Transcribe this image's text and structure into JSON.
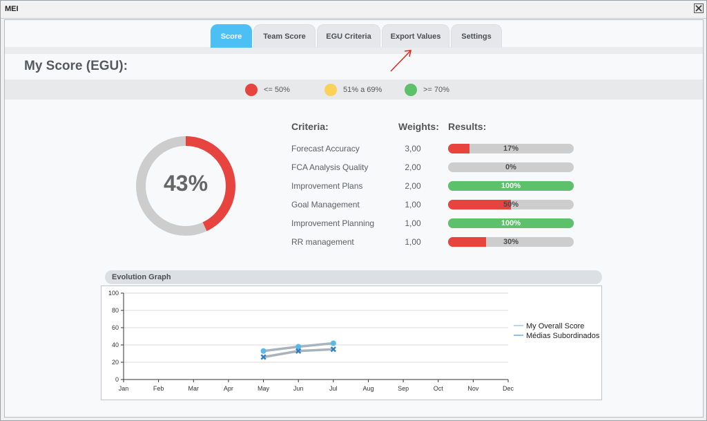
{
  "window": {
    "title": "MEI"
  },
  "tabs": [
    {
      "label": "Score",
      "active": true
    },
    {
      "label": "Team Score",
      "active": false
    },
    {
      "label": "EGU Criteria",
      "active": false
    },
    {
      "label": "Export Values",
      "active": false
    },
    {
      "label": "Settings",
      "active": false
    }
  ],
  "page": {
    "title": "My Score (EGU):"
  },
  "legend": [
    {
      "label": "<= 50%",
      "color": "#e8443f"
    },
    {
      "label": "51% a 69%",
      "color": "#fbd15a"
    },
    {
      "label": ">= 70%",
      "color": "#5cc16a"
    }
  ],
  "overall": {
    "percent_label": "43%",
    "value": 43
  },
  "criteria_table": {
    "headers": {
      "criteria": "Criteria:",
      "weights": "Weights:",
      "results": "Results:"
    },
    "rows": [
      {
        "name": "Forecast Accuracy",
        "weight": "3,00",
        "result": 17,
        "result_label": "17%",
        "color": "#e8443f"
      },
      {
        "name": "FCA Analysis Quality",
        "weight": "2,00",
        "result": 0,
        "result_label": "0%",
        "color": "#e8443f"
      },
      {
        "name": "Improvement Plans",
        "weight": "2,00",
        "result": 100,
        "result_label": "100%",
        "color": "#5cc16a"
      },
      {
        "name": "Goal Management",
        "weight": "1,00",
        "result": 50,
        "result_label": "50%",
        "color": "#e8443f"
      },
      {
        "name": "Improvement Planning",
        "weight": "1,00",
        "result": 100,
        "result_label": "100%",
        "color": "#5cc16a"
      },
      {
        "name": "RR management",
        "weight": "1,00",
        "result": 30,
        "result_label": "30%",
        "color": "#e8443f"
      }
    ]
  },
  "evolution": {
    "title": "Evolution Graph"
  },
  "chart_data": {
    "type": "line",
    "categories": [
      "Jan",
      "Feb",
      "Mar",
      "Apr",
      "May",
      "Jun",
      "Jul",
      "Aug",
      "Sep",
      "Oct",
      "Nov",
      "Dec"
    ],
    "yticks": [
      "0",
      "20",
      "40",
      "60",
      "80",
      "100"
    ],
    "ylim": [
      0,
      100
    ],
    "grid": true,
    "legend_position": "right",
    "series": [
      {
        "name": "My Overall Score",
        "color": "#5bb8ea",
        "marker": "circle",
        "values": [
          null,
          null,
          null,
          null,
          33,
          38,
          42,
          null,
          null,
          null,
          null,
          null
        ]
      },
      {
        "name": "Médias Subordinados",
        "color": "#2d7fc6",
        "marker": "x",
        "values": [
          null,
          null,
          null,
          null,
          26,
          33,
          35,
          null,
          null,
          null,
          null,
          null
        ]
      }
    ]
  }
}
